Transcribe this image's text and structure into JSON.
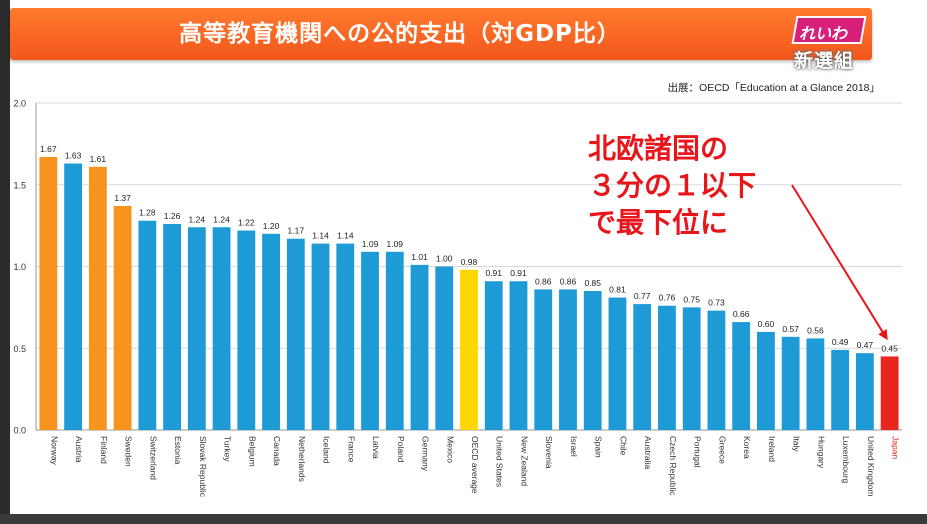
{
  "title": "高等教育機関への公的支出（対GDP比）",
  "source": "出展：OECD「Education at a Glance 2018」",
  "logo": {
    "top": "れいわ",
    "bottom": "新選組"
  },
  "annotation": {
    "lines": [
      "北欧諸国の",
      "３分の１以下",
      "で最下位に"
    ]
  },
  "colors": {
    "nordic": "#f7941d",
    "default": "#1e9ad6",
    "oecd": "#ffd700",
    "japan": "#e8251f",
    "japan_label": "#e8251f",
    "arrow": "#e8161b"
  },
  "chart_data": {
    "type": "bar",
    "ylim": [
      0,
      2.0
    ],
    "yticks": [
      "0.0",
      "0.5",
      "1.0",
      "1.5",
      "2.0"
    ],
    "grid": true,
    "categories": [
      "Norway",
      "Austria",
      "Finland",
      "Sweden",
      "Switzerland",
      "Estonia",
      "Slovak Republic",
      "Turkey",
      "Belgium",
      "Canada",
      "Netherlands",
      "Iceland",
      "France",
      "Latvia",
      "Poland",
      "Germany",
      "Mexico",
      "OECD average",
      "United States",
      "New Zealand",
      "Slovenia",
      "Israel",
      "Spain",
      "Chile",
      "Australia",
      "Czech Republic",
      "Portugal",
      "Greece",
      "Korea",
      "Ireland",
      "Italy",
      "Hungary",
      "Luxembourg",
      "United Kingdom",
      "Japan"
    ],
    "values": [
      1.67,
      1.63,
      1.61,
      1.37,
      1.28,
      1.26,
      1.24,
      1.24,
      1.22,
      1.2,
      1.17,
      1.14,
      1.14,
      1.09,
      1.09,
      1.01,
      1.0,
      0.98,
      0.91,
      0.91,
      0.86,
      0.86,
      0.85,
      0.81,
      0.77,
      0.76,
      0.75,
      0.73,
      0.66,
      0.6,
      0.57,
      0.56,
      0.49,
      0.47,
      0.45
    ],
    "value_labels": [
      "1.67",
      "1.63",
      "1.61",
      "1.37",
      "1.28",
      "1.26",
      "1.24",
      "1.24",
      "1.22",
      "1.20",
      "1.17",
      "1.14",
      "1.14",
      "1.09",
      "1.09",
      "1.01",
      "1.00",
      "0.98",
      "0.91",
      "0.91",
      "0.86",
      "0.86",
      "0.85",
      "0.81",
      "0.77",
      "0.76",
      "0.75",
      "0.73",
      "0.66",
      "0.60",
      "0.57",
      "0.56",
      "0.49",
      "0.47",
      "0.45"
    ],
    "bar_colors": [
      "nordic",
      "default",
      "nordic",
      "nordic",
      "default",
      "default",
      "default",
      "default",
      "default",
      "default",
      "default",
      "default",
      "default",
      "default",
      "default",
      "default",
      "default",
      "oecd",
      "default",
      "default",
      "default",
      "default",
      "default",
      "default",
      "default",
      "default",
      "default",
      "default",
      "default",
      "default",
      "default",
      "default",
      "default",
      "default",
      "japan"
    ]
  }
}
